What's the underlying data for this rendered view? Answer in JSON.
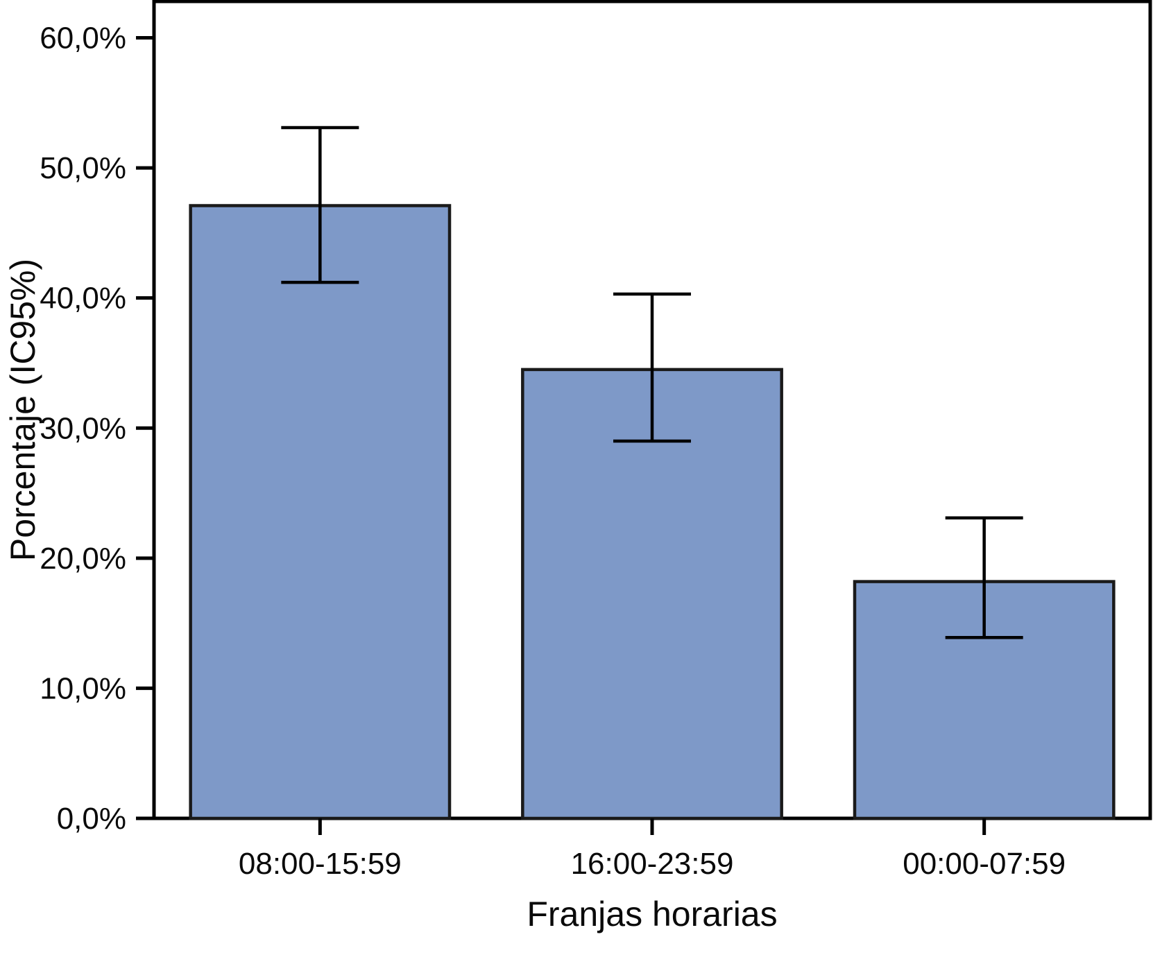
{
  "chart_data": {
    "type": "bar",
    "title": "",
    "xlabel": "Franjas horarias",
    "ylabel": "Porcentaje (IC95%)",
    "categories": [
      "08:00-15:59",
      "16:00-23:59",
      "00:00-07:59"
    ],
    "values": [
      47.1,
      34.5,
      18.2
    ],
    "error_low": [
      41.2,
      29.0,
      13.9
    ],
    "error_high": [
      53.1,
      40.3,
      23.1
    ],
    "ylim": [
      0,
      62.8
    ],
    "yticks": [
      0,
      10,
      20,
      30,
      40,
      50,
      60
    ],
    "ytick_labels": [
      "0,0%",
      "10,0%",
      "20,0%",
      "30,0%",
      "40,0%",
      "50,0%",
      "60,0%"
    ],
    "grid": false,
    "legend_position": "none",
    "bar_color": "#7e99c8",
    "bar_border_color": "#1a1a1a",
    "axis_color": "#000000",
    "text_color": "#0a0a0a"
  }
}
